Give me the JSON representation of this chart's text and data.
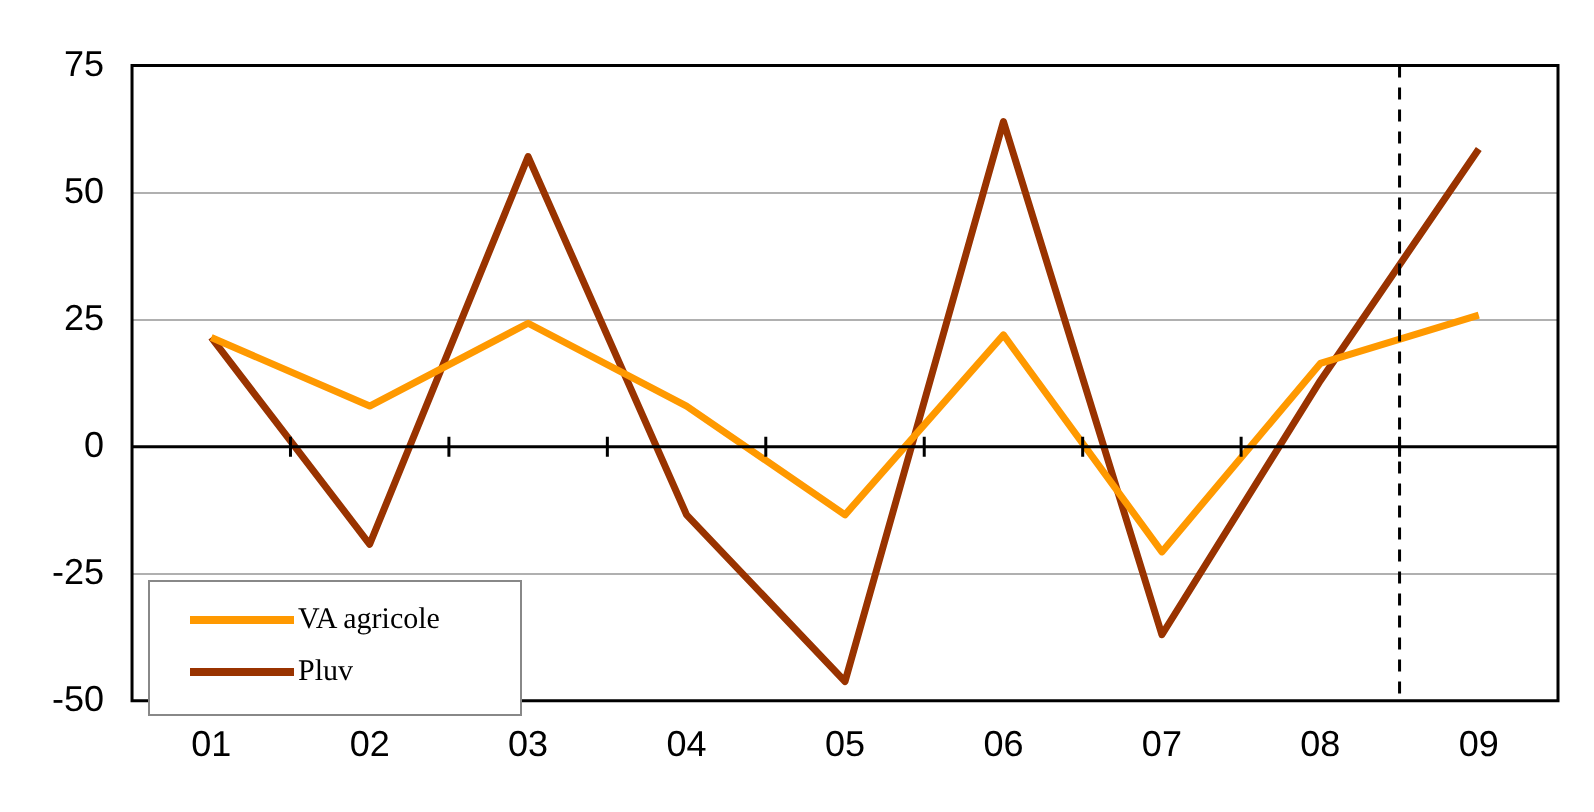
{
  "chart_data": {
    "type": "line",
    "x": [
      1,
      2,
      3,
      4,
      5,
      6,
      7,
      8,
      9
    ],
    "series": [
      {
        "name": "VA agricole",
        "color": "#ff9900",
        "values": [
          21.5,
          8,
          24.3,
          8,
          -13.4,
          22,
          -20.7,
          16.4,
          25.9
        ]
      },
      {
        "name": "Pluv",
        "color": "#993300",
        "values": [
          21.5,
          -19.2,
          57.1,
          -13.4,
          -46.2,
          64,
          -37,
          13,
          58.6
        ]
      }
    ],
    "xlim": [
      0.5,
      9.5
    ],
    "xticks": [
      {
        "value": 1,
        "label": "01"
      },
      {
        "value": 2,
        "label": "02"
      },
      {
        "value": 3,
        "label": "03"
      },
      {
        "value": 4,
        "label": "04"
      },
      {
        "value": 5,
        "label": "05"
      },
      {
        "value": 6,
        "label": "06"
      },
      {
        "value": 7,
        "label": "07"
      },
      {
        "value": 8,
        "label": "08"
      },
      {
        "value": 9,
        "label": "09"
      }
    ],
    "ylim": [
      -50,
      75
    ],
    "yticks": [
      -50,
      -25,
      0,
      25,
      50,
      75
    ],
    "grid": "y",
    "legend": "bottom left",
    "marker": "none",
    "line_style": "solid",
    "ref_lines": [
      {
        "axis": "x",
        "value": 8.5,
        "color": "#000000",
        "line_style": "dashed"
      }
    ]
  }
}
